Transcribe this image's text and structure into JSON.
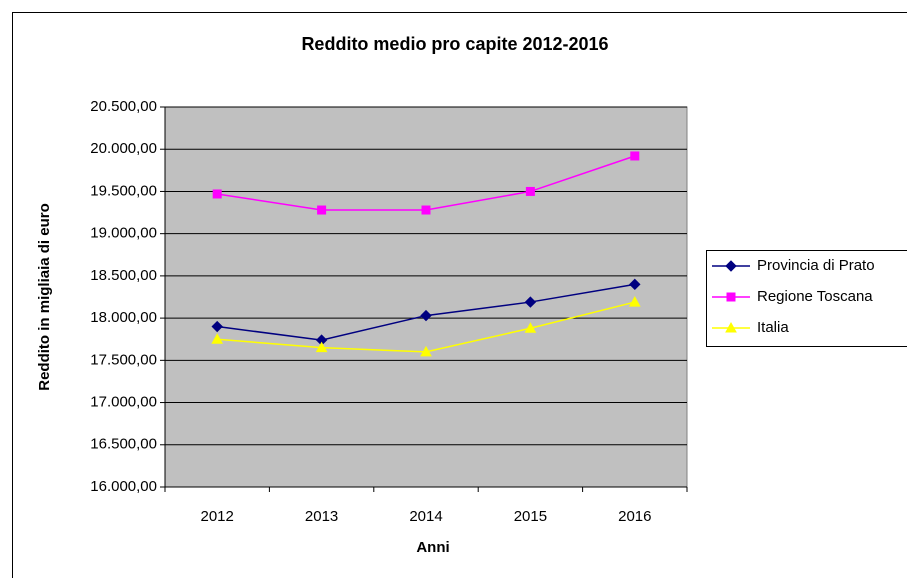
{
  "chart_data": {
    "type": "line",
    "title": "Reddito medio pro capite 2012-2016",
    "x_label": "Anni",
    "y_label": "Reddito in migliaia di euro",
    "categories": [
      "2012",
      "2013",
      "2014",
      "2015",
      "2016"
    ],
    "series": [
      {
        "name": "Provincia di Prato",
        "color": "#000080",
        "marker": "diamond",
        "values": [
          17900,
          17740,
          18030,
          18190,
          18400
        ]
      },
      {
        "name": "Regione Toscana",
        "color": "#ff00ff",
        "marker": "square",
        "values": [
          19470,
          19280,
          19280,
          19500,
          19920
        ]
      },
      {
        "name": "Italia",
        "color": "#ffff00",
        "marker": "triangle",
        "values": [
          17750,
          17650,
          17600,
          17880,
          18190
        ]
      }
    ],
    "ylim": [
      16000,
      20500
    ],
    "yticks": [
      {
        "value": 16000,
        "label": "16.000,00"
      },
      {
        "value": 16500,
        "label": "16.500,00"
      },
      {
        "value": 17000,
        "label": "17.000,00"
      },
      {
        "value": 17500,
        "label": "17.500,00"
      },
      {
        "value": 18000,
        "label": "18.000,00"
      },
      {
        "value": 18500,
        "label": "18.500,00"
      },
      {
        "value": 19000,
        "label": "19.000,00"
      },
      {
        "value": 19500,
        "label": "19.500,00"
      },
      {
        "value": 20000,
        "label": "20.000,00"
      },
      {
        "value": 20500,
        "label": "20.500,00"
      }
    ],
    "grid": true,
    "legend": "right"
  }
}
